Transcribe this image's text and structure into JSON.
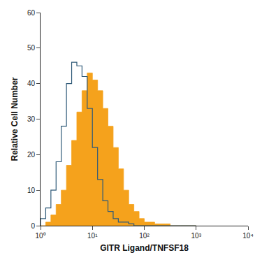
{
  "chart_data": {
    "type": "histogram",
    "x_label": "GITR Ligand/TNFSF18",
    "y_label": "Relative Cell Number",
    "log": "x",
    "grid": false,
    "xlim": [
      1,
      10000
    ],
    "xticks": [
      {
        "value": 1,
        "label": "10⁰"
      },
      {
        "value": 10,
        "label": "10¹"
      },
      {
        "value": 100,
        "label": "10²"
      },
      {
        "value": 1000,
        "label": "10³"
      },
      {
        "value": 10000,
        "label": "10⁴"
      }
    ],
    "ylim": [
      0,
      60
    ],
    "yticks": [
      0,
      10,
      20,
      30,
      40,
      50,
      60
    ],
    "bins": [
      1,
      1.259,
      1.585,
      1.995,
      2.512,
      3.162,
      3.981,
      5.012,
      6.31,
      7.943,
      10,
      12.59,
      15.85,
      19.95,
      25.12,
      31.62,
      39.81,
      50.12,
      63.1,
      79.43,
      100,
      125.9,
      158.5,
      199.5,
      251.2,
      316.2,
      398.1,
      501.2,
      631,
      794.3,
      1000
    ],
    "series": [
      {
        "color": "#f5a21c",
        "marker": "filled",
        "values": [
          0,
          1,
          3,
          6,
          10,
          17,
          24,
          32,
          38,
          43,
          41,
          38,
          33,
          28,
          22,
          16,
          10,
          6,
          4,
          2,
          1,
          1,
          0.5,
          0.5,
          0.5,
          0,
          0,
          0,
          0,
          0
        ]
      },
      {
        "color": "#2f5a78",
        "marker": "open",
        "values": [
          2,
          5,
          10,
          18,
          28,
          40,
          46,
          45,
          42,
          33,
          22,
          13,
          7,
          4,
          2,
          1,
          1,
          0.5,
          0,
          0,
          0,
          0,
          0,
          0,
          0,
          0,
          0,
          0,
          0,
          0
        ]
      }
    ]
  }
}
